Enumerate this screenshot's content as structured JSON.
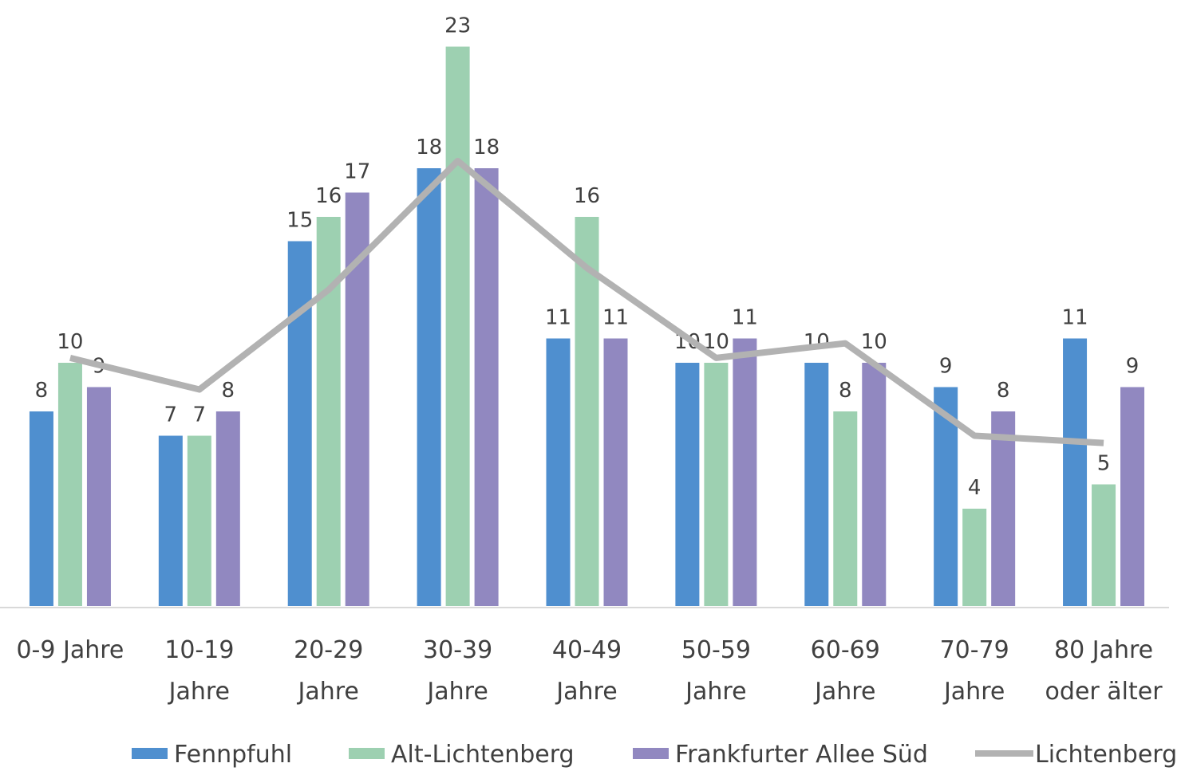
{
  "chart_data": {
    "type": "bar",
    "categories": [
      "0-9 Jahre",
      "10-19 Jahre",
      "20-29 Jahre",
      "30-39 Jahre",
      "40-49 Jahre",
      "50-59 Jahre",
      "60-69 Jahre",
      "70-79 Jahre",
      "80 Jahre oder älter"
    ],
    "series": [
      {
        "name": "Fennpfuhl",
        "color": "#4f8fcf",
        "values": [
          8,
          7,
          15,
          18,
          11,
          10,
          10,
          9,
          11
        ]
      },
      {
        "name": "Alt-Lichtenberg",
        "color": "#9dd0b1",
        "values": [
          10,
          7,
          16,
          23,
          16,
          10,
          8,
          4,
          5
        ]
      },
      {
        "name": "Frankfurter Allee Süd",
        "color": "#9188c0",
        "values": [
          9,
          8,
          17,
          18,
          11,
          11,
          10,
          8,
          9
        ]
      },
      {
        "name": "Lichtenberg",
        "color": "#b2b2b2",
        "type": "line",
        "values": [
          10.2,
          8.9,
          13.0,
          18.3,
          13.9,
          10.2,
          10.8,
          7.0,
          6.7
        ]
      }
    ],
    "ylim": [
      0,
      24
    ],
    "legend": "bottom"
  }
}
